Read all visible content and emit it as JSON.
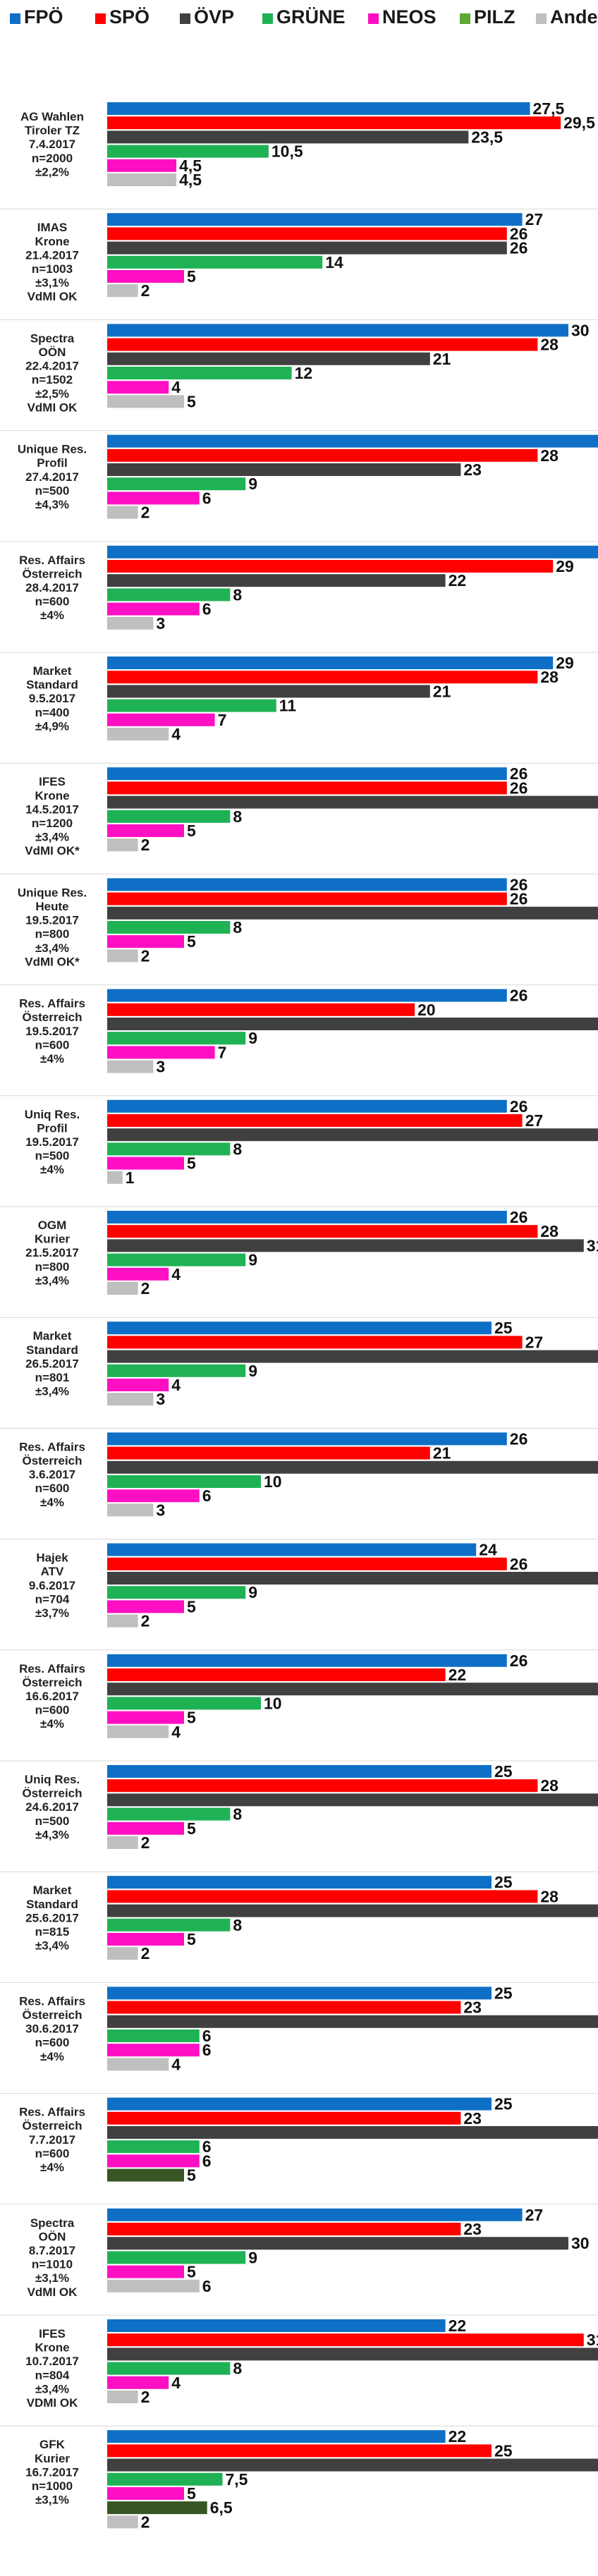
{
  "chart_data": {
    "type": "bar",
    "orientation": "horizontal",
    "legend": [
      {
        "name": "FPÖ",
        "color": "#0f6fc6"
      },
      {
        "name": "SPÖ",
        "color": "#ff0000"
      },
      {
        "name": "ÖVP",
        "color": "#404040"
      },
      {
        "name": "GRÜNE",
        "color": "#1fb255"
      },
      {
        "name": "NEOS",
        "color": "#ff0fc4"
      },
      {
        "name": "PILZ",
        "color": "#5ea832"
      },
      {
        "name": "Andere/?",
        "color": "#bfbfbf"
      }
    ],
    "series_colors": {
      "pilz_dark": "#375623"
    },
    "polls": [
      {
        "label": [
          "AG Wahlen",
          "Tiroler TZ",
          "7.4.2017",
          "n=2000",
          "±2,2%"
        ],
        "bars": [
          {
            "party": "FPÖ",
            "value": 27.5,
            "text": "27,5"
          },
          {
            "party": "SPÖ",
            "value": 29.5,
            "text": "29,5"
          },
          {
            "party": "ÖVP",
            "value": 23.5,
            "text": "23,5"
          },
          {
            "party": "GRÜNE",
            "value": 10.5,
            "text": "10,5"
          },
          {
            "party": "NEOS",
            "value": 4.5,
            "text": "4,5"
          },
          {
            "party": "Andere/?",
            "value": 4.5,
            "text": "4,5"
          }
        ]
      },
      {
        "label": [
          "IMAS",
          "Krone",
          "21.4.2017",
          "n=1003",
          "±3,1%",
          "VdMI OK"
        ],
        "bars": [
          {
            "party": "FPÖ",
            "value": 27,
            "text": "27"
          },
          {
            "party": "SPÖ",
            "value": 26,
            "text": "26"
          },
          {
            "party": "ÖVP",
            "value": 26,
            "text": "26"
          },
          {
            "party": "GRÜNE",
            "value": 14,
            "text": "14"
          },
          {
            "party": "NEOS",
            "value": 5,
            "text": "5"
          },
          {
            "party": "Andere/?",
            "value": 2,
            "text": "2"
          }
        ]
      },
      {
        "label": [
          "Spectra",
          "OÖN",
          "22.4.2017",
          "n=1502",
          "±2,5%",
          "VdMI OK"
        ],
        "bars": [
          {
            "party": "FPÖ",
            "value": 30,
            "text": "30"
          },
          {
            "party": "SPÖ",
            "value": 28,
            "text": "28"
          },
          {
            "party": "ÖVP",
            "value": 21,
            "text": "21"
          },
          {
            "party": "GRÜNE",
            "value": 12,
            "text": "12"
          },
          {
            "party": "NEOS",
            "value": 4,
            "text": "4"
          },
          {
            "party": "Andere/?",
            "value": 5,
            "text": "5"
          }
        ]
      },
      {
        "label": [
          "Unique Res.",
          "Profil",
          "27.4.2017",
          "n=500",
          "±4,3%"
        ],
        "bars": [
          {
            "party": "FPÖ",
            "value": 32,
            "text": "32"
          },
          {
            "party": "SPÖ",
            "value": 28,
            "text": "28"
          },
          {
            "party": "ÖVP",
            "value": 23,
            "text": "23"
          },
          {
            "party": "GRÜNE",
            "value": 9,
            "text": "9"
          },
          {
            "party": "NEOS",
            "value": 6,
            "text": "6"
          },
          {
            "party": "Andere/?",
            "value": 2,
            "text": "2"
          }
        ]
      },
      {
        "label": [
          "Res. Affairs",
          "Österreich",
          "28.4.2017",
          "n=600",
          "±4%"
        ],
        "bars": [
          {
            "party": "FPÖ",
            "value": 32,
            "text": "32"
          },
          {
            "party": "SPÖ",
            "value": 29,
            "text": "29"
          },
          {
            "party": "ÖVP",
            "value": 22,
            "text": "22"
          },
          {
            "party": "GRÜNE",
            "value": 8,
            "text": "8"
          },
          {
            "party": "NEOS",
            "value": 6,
            "text": "6"
          },
          {
            "party": "Andere/?",
            "value": 3,
            "text": "3"
          }
        ]
      },
      {
        "label": [
          "Market",
          "Standard",
          "9.5.2017",
          "n=400",
          "±4,9%"
        ],
        "bars": [
          {
            "party": "FPÖ",
            "value": 29,
            "text": "29"
          },
          {
            "party": "SPÖ",
            "value": 28,
            "text": "28"
          },
          {
            "party": "ÖVP",
            "value": 21,
            "text": "21"
          },
          {
            "party": "GRÜNE",
            "value": 11,
            "text": "11"
          },
          {
            "party": "NEOS",
            "value": 7,
            "text": "7"
          },
          {
            "party": "Andere/?",
            "value": 4,
            "text": "4"
          }
        ]
      },
      {
        "label": [
          "IFES",
          "Krone",
          "14.5.2017",
          "n=1200",
          "±3,4%",
          "VdMI OK*"
        ],
        "bars": [
          {
            "party": "FPÖ",
            "value": 26,
            "text": "26"
          },
          {
            "party": "SPÖ",
            "value": 26,
            "text": "26"
          },
          {
            "party": "ÖVP",
            "value": 33,
            "text": "33"
          },
          {
            "party": "GRÜNE",
            "value": 8,
            "text": "8"
          },
          {
            "party": "NEOS",
            "value": 5,
            "text": "5"
          },
          {
            "party": "Andere/?",
            "value": 2,
            "text": "2"
          }
        ]
      },
      {
        "label": [
          "Unique Res.",
          "Heute",
          "19.5.2017",
          "n=800",
          "±3,4%",
          "VdMI OK*"
        ],
        "bars": [
          {
            "party": "FPÖ",
            "value": 26,
            "text": "26"
          },
          {
            "party": "SPÖ",
            "value": 26,
            "text": "26"
          },
          {
            "party": "ÖVP",
            "value": 33,
            "text": "33"
          },
          {
            "party": "GRÜNE",
            "value": 8,
            "text": "8"
          },
          {
            "party": "NEOS",
            "value": 5,
            "text": "5"
          },
          {
            "party": "Andere/?",
            "value": 2,
            "text": "2"
          }
        ]
      },
      {
        "label": [
          "Res. Affairs",
          "Österreich",
          "19.5.2017",
          "n=600",
          "±4%"
        ],
        "bars": [
          {
            "party": "FPÖ",
            "value": 26,
            "text": "26"
          },
          {
            "party": "SPÖ",
            "value": 20,
            "text": "20"
          },
          {
            "party": "ÖVP",
            "value": 35,
            "text": "35"
          },
          {
            "party": "GRÜNE",
            "value": 9,
            "text": "9"
          },
          {
            "party": "NEOS",
            "value": 7,
            "text": "7"
          },
          {
            "party": "Andere/?",
            "value": 3,
            "text": "3"
          }
        ]
      },
      {
        "label": [
          "Uniq Res.",
          "Profil",
          "19.5.2017",
          "n=500",
          "±4%"
        ],
        "bars": [
          {
            "party": "FPÖ",
            "value": 26,
            "text": "26"
          },
          {
            "party": "SPÖ",
            "value": 27,
            "text": "27"
          },
          {
            "party": "ÖVP",
            "value": 33,
            "text": "33"
          },
          {
            "party": "GRÜNE",
            "value": 8,
            "text": "8"
          },
          {
            "party": "NEOS",
            "value": 5,
            "text": "5"
          },
          {
            "party": "Andere/?",
            "value": 1,
            "text": "1"
          }
        ]
      },
      {
        "label": [
          "OGM",
          "Kurier",
          "21.5.2017",
          "n=800",
          "±3,4%"
        ],
        "bars": [
          {
            "party": "FPÖ",
            "value": 26,
            "text": "26"
          },
          {
            "party": "SPÖ",
            "value": 28,
            "text": "28"
          },
          {
            "party": "ÖVP",
            "value": 31,
            "text": "31"
          },
          {
            "party": "GRÜNE",
            "value": 9,
            "text": "9"
          },
          {
            "party": "NEOS",
            "value": 4,
            "text": "4"
          },
          {
            "party": "Andere/?",
            "value": 2,
            "text": "2"
          }
        ]
      },
      {
        "label": [
          "Market",
          "Standard",
          "26.5.2017",
          "n=801",
          "±3,4%"
        ],
        "bars": [
          {
            "party": "FPÖ",
            "value": 25,
            "text": "25"
          },
          {
            "party": "SPÖ",
            "value": 27,
            "text": "27"
          },
          {
            "party": "ÖVP",
            "value": 32,
            "text": "32"
          },
          {
            "party": "GRÜNE",
            "value": 9,
            "text": "9"
          },
          {
            "party": "NEOS",
            "value": 4,
            "text": "4"
          },
          {
            "party": "Andere/?",
            "value": 3,
            "text": "3"
          }
        ]
      },
      {
        "label": [
          "Res. Affairs",
          "Österreich",
          "3.6.2017",
          "n=600",
          "±4%"
        ],
        "bars": [
          {
            "party": "FPÖ",
            "value": 26,
            "text": "26"
          },
          {
            "party": "SPÖ",
            "value": 21,
            "text": "21"
          },
          {
            "party": "ÖVP",
            "value": 34,
            "text": "34"
          },
          {
            "party": "GRÜNE",
            "value": 10,
            "text": "10"
          },
          {
            "party": "NEOS",
            "value": 6,
            "text": "6"
          },
          {
            "party": "Andere/?",
            "value": 3,
            "text": "3"
          }
        ]
      },
      {
        "label": [
          "Hajek",
          "ATV",
          "9.6.2017",
          "n=704",
          "±3,7%"
        ],
        "bars": [
          {
            "party": "FPÖ",
            "value": 24,
            "text": "24"
          },
          {
            "party": "SPÖ",
            "value": 26,
            "text": "26"
          },
          {
            "party": "ÖVP",
            "value": 34,
            "text": "34"
          },
          {
            "party": "GRÜNE",
            "value": 9,
            "text": "9"
          },
          {
            "party": "NEOS",
            "value": 5,
            "text": "5"
          },
          {
            "party": "Andere/?",
            "value": 2,
            "text": "2"
          }
        ]
      },
      {
        "label": [
          "Res. Affairs",
          "Österreich",
          "16.6.2017",
          "n=600",
          "±4%"
        ],
        "bars": [
          {
            "party": "FPÖ",
            "value": 26,
            "text": "26"
          },
          {
            "party": "SPÖ",
            "value": 22,
            "text": "22"
          },
          {
            "party": "ÖVP",
            "value": 34,
            "text": "34"
          },
          {
            "party": "GRÜNE",
            "value": 10,
            "text": "10"
          },
          {
            "party": "NEOS",
            "value": 5,
            "text": "5"
          },
          {
            "party": "Andere/?",
            "value": 4,
            "text": "4"
          }
        ]
      },
      {
        "label": [
          "Uniq Res.",
          "Österreich",
          "24.6.2017",
          "n=500",
          "±4,3%"
        ],
        "bars": [
          {
            "party": "FPÖ",
            "value": 25,
            "text": "25"
          },
          {
            "party": "SPÖ",
            "value": 28,
            "text": "28"
          },
          {
            "party": "ÖVP",
            "value": 32,
            "text": "32"
          },
          {
            "party": "GRÜNE",
            "value": 8,
            "text": "8"
          },
          {
            "party": "NEOS",
            "value": 5,
            "text": "5"
          },
          {
            "party": "Andere/?",
            "value": 2,
            "text": "2"
          }
        ]
      },
      {
        "label": [
          "Market",
          "Standard",
          "25.6.2017",
          "n=815",
          "±3,4%"
        ],
        "bars": [
          {
            "party": "FPÖ",
            "value": 25,
            "text": "25"
          },
          {
            "party": "SPÖ",
            "value": 28,
            "text": "28"
          },
          {
            "party": "ÖVP",
            "value": 32,
            "text": "32"
          },
          {
            "party": "GRÜNE",
            "value": 8,
            "text": "8"
          },
          {
            "party": "NEOS",
            "value": 5,
            "text": "5"
          },
          {
            "party": "Andere/?",
            "value": 2,
            "text": "2"
          }
        ]
      },
      {
        "label": [
          "Res. Affairs",
          "Österreich",
          "30.6.2017",
          "n=600",
          "±4%"
        ],
        "bars": [
          {
            "party": "FPÖ",
            "value": 25,
            "text": "25"
          },
          {
            "party": "SPÖ",
            "value": 23,
            "text": "23"
          },
          {
            "party": "ÖVP",
            "value": 34,
            "text": "34"
          },
          {
            "party": "GRÜNE",
            "value": 6,
            "text": "6"
          },
          {
            "party": "NEOS",
            "value": 6,
            "text": "6"
          },
          {
            "party": "Andere/?",
            "value": 4,
            "text": "4"
          }
        ]
      },
      {
        "label": [
          "Res. Affairs",
          "Österreich",
          "7.7.2017",
          "n=600",
          "±4%"
        ],
        "bars": [
          {
            "party": "FPÖ",
            "value": 25,
            "text": "25"
          },
          {
            "party": "SPÖ",
            "value": 23,
            "text": "23"
          },
          {
            "party": "ÖVP",
            "value": 34,
            "text": "34"
          },
          {
            "party": "GRÜNE",
            "value": 6,
            "text": "6"
          },
          {
            "party": "NEOS",
            "value": 6,
            "text": "6"
          },
          {
            "party": "PILZ",
            "value": 5,
            "text": "5",
            "color": "#375623"
          }
        ]
      },
      {
        "label": [
          "Spectra",
          "OÖN",
          "8.7.2017",
          "n=1010",
          "±3,1%",
          "VdMI OK"
        ],
        "bars": [
          {
            "party": "FPÖ",
            "value": 27,
            "text": "27"
          },
          {
            "party": "SPÖ",
            "value": 23,
            "text": "23"
          },
          {
            "party": "ÖVP",
            "value": 30,
            "text": "30"
          },
          {
            "party": "GRÜNE",
            "value": 9,
            "text": "9"
          },
          {
            "party": "NEOS",
            "value": 5,
            "text": "5"
          },
          {
            "party": "Andere/?",
            "value": 6,
            "text": "6"
          }
        ]
      },
      {
        "label": [
          "IFES",
          "Krone",
          "10.7.2017",
          "n=804",
          "±3,4%",
          "VDMI OK"
        ],
        "bars": [
          {
            "party": "FPÖ",
            "value": 22,
            "text": "22"
          },
          {
            "party": "SPÖ",
            "value": 31,
            "text": "31"
          },
          {
            "party": "ÖVP",
            "value": 34,
            "text": "34"
          },
          {
            "party": "GRÜNE",
            "value": 8,
            "text": "8"
          },
          {
            "party": "NEOS",
            "value": 4,
            "text": "4"
          },
          {
            "party": "Andere/?",
            "value": 2,
            "text": "2"
          }
        ]
      },
      {
        "label": [
          "GFK",
          "Kurier",
          "16.7.2017",
          "n=1000",
          "±3,1%"
        ],
        "bars": [
          {
            "party": "FPÖ",
            "value": 22,
            "text": "22"
          },
          {
            "party": "SPÖ",
            "value": 25,
            "text": "25"
          },
          {
            "party": "ÖVP",
            "value": 32,
            "text": "32"
          },
          {
            "party": "GRÜNE",
            "value": 7.5,
            "text": "7,5"
          },
          {
            "party": "NEOS",
            "value": 5,
            "text": "5"
          },
          {
            "party": "PILZ",
            "value": 6.5,
            "text": "6,5",
            "color": "#375623"
          },
          {
            "party": "Andere/?",
            "value": 2,
            "text": "2"
          }
        ]
      }
    ]
  }
}
